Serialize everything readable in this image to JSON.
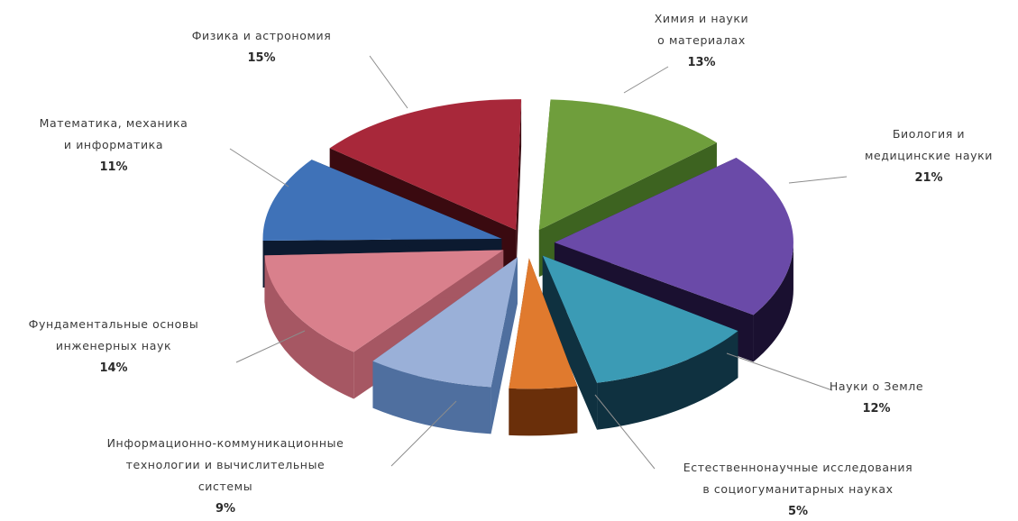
{
  "chart_data": {
    "type": "pie",
    "style": "3d-exploded",
    "slices": [
      {
        "label": "Химия и науки о материалах",
        "label_lines": [
          "Химия и науки",
          "о материалах"
        ],
        "value": 13,
        "pct_label": "13%",
        "color": "#6f9e3c",
        "side": "#3d6320"
      },
      {
        "label": "Биология и медицинские науки",
        "label_lines": [
          "Биология и",
          "медицинские науки"
        ],
        "value": 21,
        "pct_label": "21%",
        "color": "#6a4aa8",
        "side": "#1a1030"
      },
      {
        "label": "Науки о Земле",
        "label_lines": [
          "Науки о Земле"
        ],
        "value": 12,
        "pct_label": "12%",
        "color": "#3b9bb5",
        "side": "#0f3140"
      },
      {
        "label": "Естественнонаучные исследования в социогуманитарных науках",
        "label_lines": [
          "Естественнонаучные исследования",
          "в социогуманитарных науках"
        ],
        "value": 5,
        "pct_label": "5%",
        "color": "#e07a2e",
        "side": "#6a2f0a"
      },
      {
        "label": "Информационно-коммуникационные технологии и вычислительные системы",
        "label_lines": [
          "Информационно-коммуникационные",
          "технологии и вычислительные",
          "системы"
        ],
        "value": 9,
        "pct_label": "9%",
        "color": "#9ab0d8",
        "side": "#4f6f9f"
      },
      {
        "label": "Фундаментальные основы инженерных наук",
        "label_lines": [
          "Фундаментальные основы",
          "инженерных наук"
        ],
        "value": 14,
        "pct_label": "14%",
        "color": "#d9808c",
        "side": "#a65763"
      },
      {
        "label": "Математика, механика и информатика",
        "label_lines": [
          "Математика, механика",
          "и информатика"
        ],
        "value": 11,
        "pct_label": "11%",
        "color": "#3f72b8",
        "side": "#0c1a30"
      },
      {
        "label": "Физика и астрономия",
        "label_lines": [
          "Физика и астрономия"
        ],
        "value": 15,
        "pct_label": "15%",
        "color": "#a8283a",
        "side": "#3a0a10"
      }
    ],
    "title": "",
    "legend": "none",
    "data_labels": "outside-with-leader-lines"
  }
}
